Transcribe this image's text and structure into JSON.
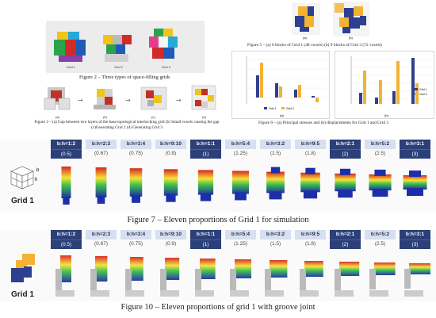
{
  "fig2": {
    "caption": "Figure 2 – Three types of space-filling grids",
    "labels": [
      "Grid 1",
      "Grid 2",
      "Grid 3"
    ]
  },
  "fig3": {
    "sublabels": [
      "(a)",
      "(b)",
      "(c)",
      "(d)"
    ],
    "caption": "Figure 3 – (a) Gap between two layers of the base topological interlocking grid (b) Small voxels causing the gap (c)Generating Grid 2 (d) Generating Grid 3"
  },
  "fig5": {
    "sublabels": [
      "(a)",
      "(b)"
    ],
    "caption": "Figure 5 – (a) 6 blocks of Grid 1 (48 voxels) (b) 9 blocks of Grid 3 (72 voxels)"
  },
  "fig6": {
    "caption": "Figure 6 – (a) Principal stresses and (b) displacements for Grid 1 and Grid 3",
    "sublabels": [
      "(a)",
      "(b)"
    ],
    "legend": [
      "Grid 1",
      "Grid 3"
    ]
  },
  "fig7": {
    "grid_label": "Grid 1",
    "corner_labels": [
      "b",
      "h"
    ],
    "caption": "Figure 7 – Eleven proportions of Grid 1 for simulation"
  },
  "fig10": {
    "grid_label": "Grid 1",
    "caption": "Figure 10 – Eleven proportions of grid 1 with groove joint"
  },
  "proportions": [
    {
      "ratio": "b:h=1:2",
      "value": "(0.5)",
      "style": "hl"
    },
    {
      "ratio": "b:h=2:3",
      "value": "(0.67)",
      "style": "lt"
    },
    {
      "ratio": "b:h=3:4",
      "value": "(0.75)",
      "style": "lt"
    },
    {
      "ratio": "b:h=9:10",
      "value": "(0.9)",
      "style": "lt"
    },
    {
      "ratio": "b:h=1:1",
      "value": "(1)",
      "style": "hl"
    },
    {
      "ratio": "b:h=5:4",
      "value": "(1.25)",
      "style": "lt"
    },
    {
      "ratio": "b:h=3:2",
      "value": "(1.5)",
      "style": "lt"
    },
    {
      "ratio": "b:h=9:5",
      "value": "(1.8)",
      "style": "lt"
    },
    {
      "ratio": "b:h=2:1",
      "value": "(2)",
      "style": "hl"
    },
    {
      "ratio": "b:h=5:2",
      "value": "(2.5)",
      "style": "lt"
    },
    {
      "ratio": "b:h=3:1",
      "value": "(3)",
      "style": "hl"
    }
  ],
  "colors": {
    "header_dark": "#2b3f78",
    "header_light": "#d6e0f0",
    "grid1_blue": "#2f3f8f",
    "grid3_gold": "#f2b233",
    "fea_red": "#d7261e",
    "fea_yellow": "#f5e23a",
    "fea_green": "#3bbf4a",
    "fea_blue": "#1d2fa8"
  }
}
